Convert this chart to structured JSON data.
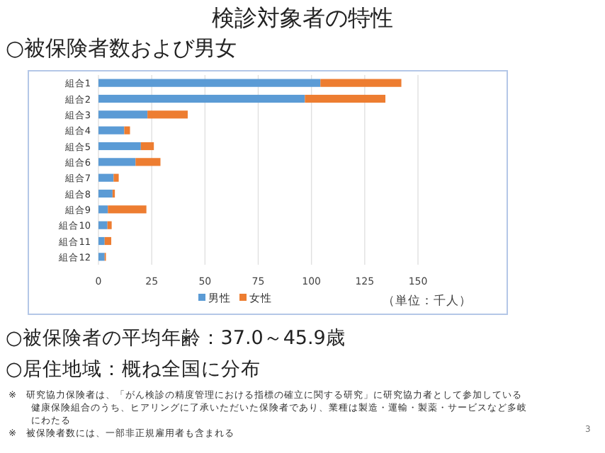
{
  "chart_data": {
    "type": "bar",
    "orientation": "horizontal",
    "stacked": true,
    "title": "検診対象者の特性",
    "subtitle": "○被保険者数および男女",
    "categories": [
      "組合1",
      "組合2",
      "組合3",
      "組合4",
      "組合5",
      "組合6",
      "組合7",
      "組合8",
      "組合9",
      "組合10",
      "組合11",
      "組合12"
    ],
    "series": [
      {
        "name": "男性",
        "color": "#5b9bd5",
        "values": [
          104.2,
          96.9,
          23.0,
          12.1,
          19.9,
          17.4,
          7.1,
          6.6,
          4.4,
          4.2,
          2.9,
          2.9
        ]
      },
      {
        "name": "女性",
        "color": "#ed7d31",
        "values": [
          38.0,
          37.8,
          18.9,
          2.7,
          6.1,
          11.7,
          2.4,
          1.1,
          18.1,
          2.0,
          3.1,
          0.6
        ]
      }
    ],
    "xlim": [
      0,
      150
    ],
    "xticks": [
      0,
      25,
      50,
      75,
      100,
      125,
      150
    ],
    "grid": "x",
    "legend": "bottom",
    "annotations": [
      "（単位：千人）",
      "○被保険者の平均年齢：37.0～45.9歳",
      "○居住地域：概ね全国に分布",
      "※　研究協力保険者は、「がん検診の精度管理における指標の確立に関する研究」に研究協力者として参加している健康保険組合のうち、ヒアリングに了承いただいた保険者であり、業種は製造・運輸・製薬・サービスなど多岐にわたる",
      "※　被保険者数には、一部非正規雇用者も含まれる",
      "3"
    ]
  }
}
